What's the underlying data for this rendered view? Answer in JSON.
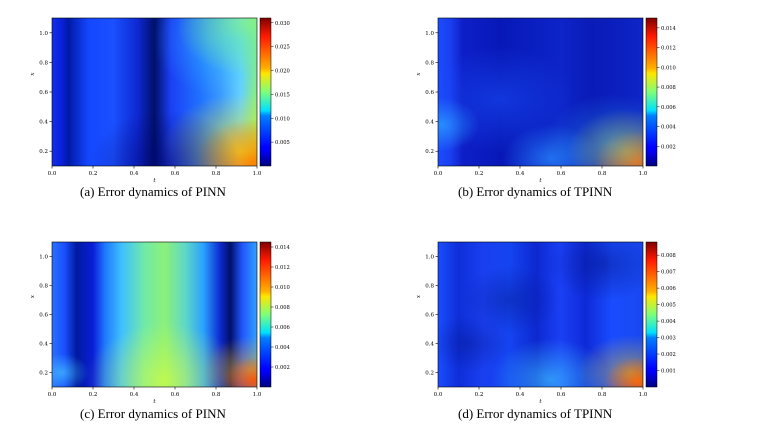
{
  "chart_data": [
    {
      "type": "heatmap",
      "caption": "(a)  Error dynamics of PINN",
      "xlabel": "t",
      "ylabel": "x",
      "xlim": [
        0.0,
        1.0
      ],
      "ylim": [
        0.1,
        1.1
      ],
      "x_ticks": [
        "0.0",
        "0.2",
        "0.4",
        "0.6",
        "0.8",
        "1.0"
      ],
      "y_ticks": [
        "0.2",
        "0.4",
        "0.6",
        "0.8",
        "1.0"
      ],
      "colorbar_ticks": [
        "0.005",
        "0.010",
        "0.015",
        "0.020",
        "0.025",
        "0.030"
      ],
      "colorbar_range": [
        0.0,
        0.031
      ],
      "colormap": "jet"
    },
    {
      "type": "heatmap",
      "caption": "(b)  Error dynamics of TPINN",
      "xlabel": "t",
      "ylabel": "x",
      "xlim": [
        0.0,
        1.0
      ],
      "ylim": [
        0.1,
        1.1
      ],
      "x_ticks": [
        "0.0",
        "0.2",
        "0.4",
        "0.6",
        "0.8",
        "1.0"
      ],
      "y_ticks": [
        "0.2",
        "0.4",
        "0.6",
        "0.8",
        "1.0"
      ],
      "colorbar_ticks": [
        "0.002",
        "0.004",
        "0.006",
        "0.008",
        "0.010",
        "0.012",
        "0.014"
      ],
      "colorbar_range": [
        0.0,
        0.015
      ],
      "colormap": "jet"
    },
    {
      "type": "heatmap",
      "caption": "(c)  Error dynamics of PINN",
      "xlabel": "t",
      "ylabel": "x",
      "xlim": [
        0.0,
        1.0
      ],
      "ylim": [
        0.1,
        1.1
      ],
      "x_ticks": [
        "0.0",
        "0.2",
        "0.4",
        "0.6",
        "0.8",
        "1.0"
      ],
      "y_ticks": [
        "0.2",
        "0.4",
        "0.6",
        "0.8",
        "1.0"
      ],
      "colorbar_ticks": [
        "0.002",
        "0.004",
        "0.006",
        "0.008",
        "0.010",
        "0.012",
        "0.014"
      ],
      "colorbar_range": [
        0.0,
        0.0145
      ],
      "colormap": "jet"
    },
    {
      "type": "heatmap",
      "caption": "(d)  Error dynamics of TPINN",
      "xlabel": "t",
      "ylabel": "x",
      "xlim": [
        0.0,
        1.0
      ],
      "ylim": [
        0.1,
        1.1
      ],
      "x_ticks": [
        "0.0",
        "0.2",
        "0.4",
        "0.6",
        "0.8",
        "1.0"
      ],
      "y_ticks": [
        "0.2",
        "0.4",
        "0.6",
        "0.8",
        "1.0"
      ],
      "colorbar_ticks": [
        "0.001",
        "0.002",
        "0.003",
        "0.004",
        "0.005",
        "0.006",
        "0.007",
        "0.008"
      ],
      "colorbar_range": [
        0.0,
        0.0088
      ],
      "colormap": "jet"
    }
  ]
}
